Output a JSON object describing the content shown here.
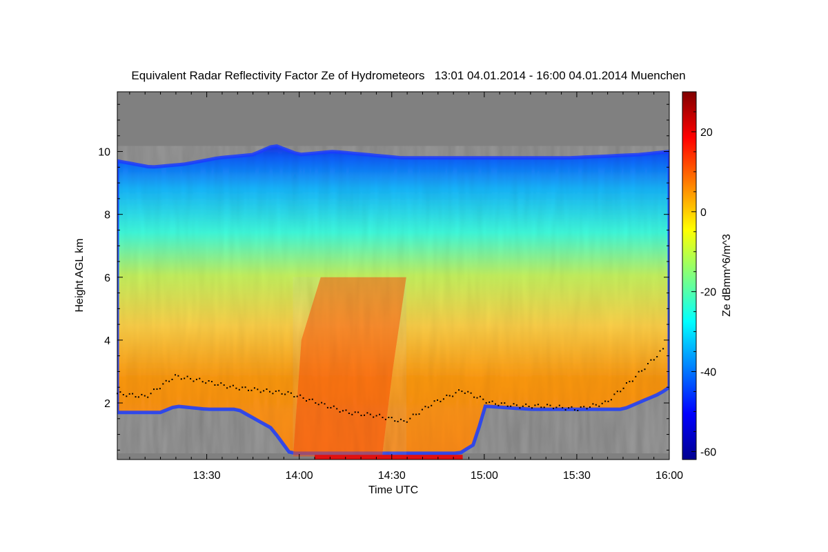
{
  "chart_data": {
    "type": "heatmap",
    "title": "Equivalent Radar Reflectivity Factor Ze of Hydrometeors   13:01 04.01.2014 - 16:00 04.01.2014 Muenchen",
    "xlabel": "Time UTC",
    "ylabel": "Height AGL km",
    "colorbar_label": "Ze dBmm^6/m^3",
    "x_range": [
      "13:01",
      "16:00"
    ],
    "y_range": [
      0.2,
      11.9
    ],
    "x_ticks": [
      "13:30",
      "14:00",
      "14:30",
      "15:00",
      "15:30",
      "16:00"
    ],
    "y_ticks": [
      2,
      4,
      6,
      8,
      10
    ],
    "colorbar_range": [
      -62,
      30
    ],
    "colorbar_ticks": [
      20,
      0,
      -20,
      -40,
      -60
    ],
    "colormap": "jet",
    "no_data_color": "#808080",
    "cloud_top_km": [
      9.7,
      9.5,
      9.6,
      9.8,
      9.9,
      10.2,
      9.9,
      10.0,
      9.9,
      9.8,
      9.8,
      9.8,
      9.8,
      9.8,
      9.8,
      9.9,
      10.0
    ],
    "cloud_top_times": [
      "13:01",
      "13:12",
      "13:23",
      "13:34",
      "13:45",
      "13:52",
      "14:00",
      "14:11",
      "14:22",
      "14:33",
      "14:44",
      "14:55",
      "15:06",
      "15:17",
      "15:28",
      "15:50",
      "16:00"
    ],
    "cloud_base_km": [
      1.7,
      1.7,
      1.9,
      1.8,
      1.8,
      1.2,
      0.4,
      0.4,
      0.4,
      0.4,
      0.4,
      0.7,
      1.9,
      1.8,
      1.8,
      1.8,
      2.3,
      2.5
    ],
    "cloud_base_times": [
      "13:01",
      "13:15",
      "13:20",
      "13:30",
      "13:40",
      "13:51",
      "13:57",
      "14:10",
      "14:25",
      "14:40",
      "14:52",
      "14:57",
      "15:00",
      "15:15",
      "15:30",
      "15:45",
      "15:57",
      "16:00"
    ],
    "ceilometer_base_km": [
      2.3,
      2.2,
      2.85,
      2.7,
      2.5,
      2.4,
      2.3,
      2.0,
      1.7,
      1.6,
      1.4,
      2.0,
      2.4,
      2.0,
      1.9,
      1.9,
      1.8,
      2.0,
      2.8,
      3.7
    ]
  }
}
